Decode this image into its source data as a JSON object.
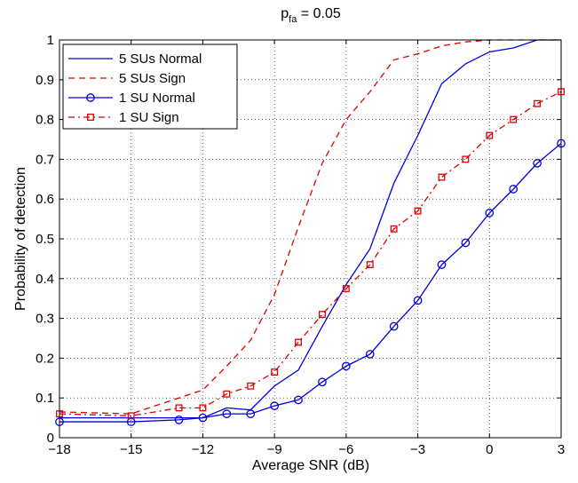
{
  "chart_data": {
    "type": "line",
    "title": "p_fa = 0.05",
    "title_main": "p",
    "title_sub": "fa",
    "title_rest": " = 0.05",
    "xlabel": "Average SNR (dB)",
    "ylabel": "Probability of detection",
    "xlim": [
      -18,
      3
    ],
    "ylim": [
      0,
      1
    ],
    "xticks": [
      -18,
      -15,
      -12,
      -9,
      -6,
      -3,
      0,
      3
    ],
    "xtick_labels": [
      "−18",
      "−15",
      "−12",
      "−9",
      "−6",
      "−3",
      "0",
      "3"
    ],
    "yticks": [
      0,
      0.1,
      0.2,
      0.3,
      0.4,
      0.5,
      0.6,
      0.7,
      0.8,
      0.9,
      1
    ],
    "ytick_labels": [
      "0",
      "0.1",
      "0.2",
      "0.3",
      "0.4",
      "0.5",
      "0.6",
      "0.7",
      "0.8",
      "0.9",
      "1"
    ],
    "grid": true,
    "legend_position": "top-left",
    "series": [
      {
        "name": "5 SUs Normal",
        "color": "#0000dd",
        "line_style": "solid",
        "marker": "none",
        "x": [
          -18,
          -15,
          -13,
          -12,
          -11,
          -10,
          -9,
          -8,
          -7,
          -6,
          -5,
          -4,
          -3,
          -2,
          -1,
          0,
          1,
          2,
          3
        ],
        "y": [
          0.05,
          0.05,
          0.05,
          0.05,
          0.075,
          0.07,
          0.13,
          0.17,
          0.28,
          0.385,
          0.475,
          0.64,
          0.76,
          0.89,
          0.94,
          0.97,
          0.98,
          1.0,
          1.0
        ]
      },
      {
        "name": "5 SUs Sign",
        "color": "#dd0000",
        "line_style": "dashed",
        "marker": "none",
        "x": [
          -18,
          -15,
          -13,
          -12,
          -11,
          -10,
          -9,
          -8,
          -7,
          -6,
          -5,
          -4,
          -3,
          -2,
          -1,
          0,
          1,
          2,
          3
        ],
        "y": [
          0.065,
          0.06,
          0.1,
          0.12,
          0.18,
          0.245,
          0.36,
          0.53,
          0.69,
          0.8,
          0.87,
          0.95,
          0.965,
          0.985,
          0.995,
          1.0,
          1.0,
          1.0,
          1.0
        ]
      },
      {
        "name": "1 SU Normal",
        "color": "#0000dd",
        "line_style": "solid",
        "marker": "circle",
        "x": [
          -18,
          -15,
          -13,
          -12,
          -11,
          -10,
          -9,
          -8,
          -7,
          -6,
          -5,
          -4,
          -3,
          -2,
          -1,
          0,
          1,
          2,
          3
        ],
        "y": [
          0.04,
          0.04,
          0.045,
          0.05,
          0.06,
          0.06,
          0.08,
          0.095,
          0.14,
          0.18,
          0.21,
          0.28,
          0.345,
          0.435,
          0.49,
          0.565,
          0.625,
          0.69,
          0.74
        ]
      },
      {
        "name": "1 SU Sign",
        "color": "#dd0000",
        "line_style": "dashdot",
        "marker": "square",
        "x": [
          -18,
          -15,
          -13,
          -12,
          -11,
          -10,
          -9,
          -8,
          -7,
          -6,
          -5,
          -4,
          -3,
          -2,
          -1,
          0,
          1,
          2,
          3
        ],
        "y": [
          0.06,
          0.055,
          0.075,
          0.075,
          0.11,
          0.13,
          0.165,
          0.24,
          0.31,
          0.375,
          0.435,
          0.525,
          0.57,
          0.655,
          0.7,
          0.76,
          0.8,
          0.84,
          0.87
        ]
      }
    ]
  }
}
